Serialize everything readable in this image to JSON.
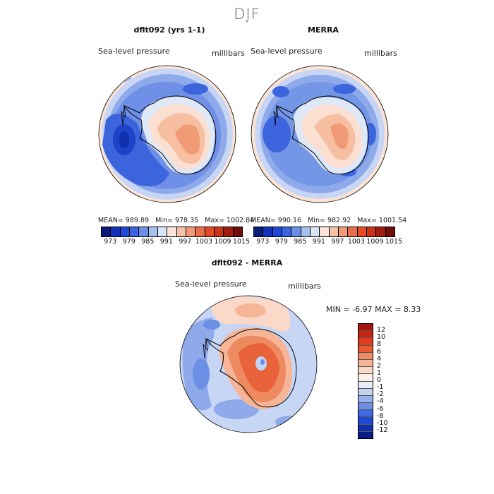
{
  "page": {
    "title": "DJF"
  },
  "panels": [
    {
      "title": "dflt092 (yrs 1-1)",
      "variable": "Sea-level pressure",
      "units": "millibars",
      "mean_label": "MEAN=",
      "mean": "989.89",
      "min_label": "Min=",
      "min": "978.35",
      "max_label": "Max=",
      "max": "1002.84"
    },
    {
      "title": "MERRA",
      "variable": "Sea-level pressure",
      "units": "millibars",
      "mean_label": "MEAN=",
      "mean": "990.16",
      "min_label": "Min=",
      "min": "982.92",
      "max_label": "Max=",
      "max": "1001.54"
    },
    {
      "title": "dflt092 - MERRA",
      "variable": "Sea-level pressure",
      "units": "millibars",
      "min_label": "MIN =",
      "min": "-6.97",
      "max_label": "MAX =",
      "max": "8.33"
    }
  ],
  "colorbar_abs": {
    "ticks": [
      "973",
      "979",
      "985",
      "991",
      "997",
      "1003",
      "1009",
      "1015"
    ],
    "colors": [
      "#081a7a",
      "#1230b8",
      "#1f48d8",
      "#3a64e0",
      "#6d8ee6",
      "#a8c0f0",
      "#d9e5f7",
      "#fbe4d8",
      "#f6c2a8",
      "#ef9b7a",
      "#e96f4c",
      "#e34a26",
      "#cb3317",
      "#9f1c10",
      "#6e0d0a"
    ]
  },
  "colorbar_diff": {
    "labels": [
      "12",
      "10",
      "8",
      "6",
      "4",
      "2",
      "1",
      "0",
      "-1",
      "-2",
      "-4",
      "-6",
      "-8",
      "-10",
      "-12"
    ],
    "colors": [
      "#a3170f",
      "#c8250f",
      "#e13d1e",
      "#ea5a30",
      "#f08a60",
      "#f7b497",
      "#fbd8c7",
      "#fdf0e9",
      "#e6eefa",
      "#c3d4f4",
      "#96b2ec",
      "#6b8fe4",
      "#3f6ade",
      "#2048d2",
      "#102fb4",
      "#081c84"
    ]
  }
}
